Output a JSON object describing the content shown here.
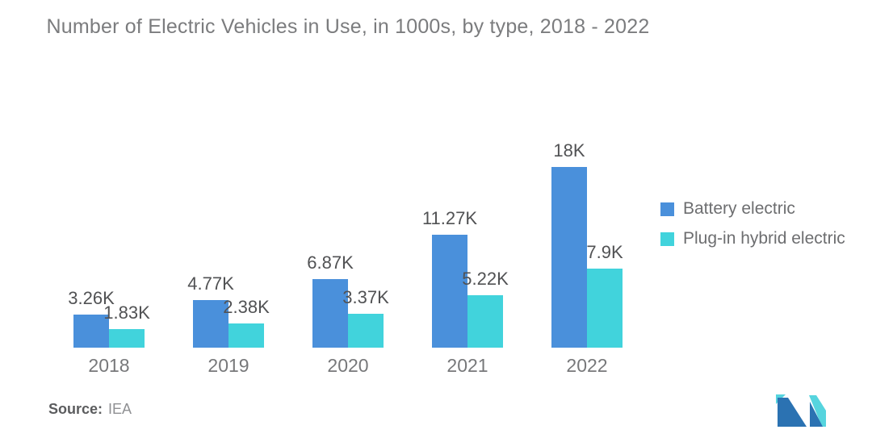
{
  "chart_data": {
    "type": "bar",
    "title": "Number of Electric Vehicles in Use, in 1000s, by type, 2018 - 2022",
    "categories": [
      "2018",
      "2019",
      "2020",
      "2021",
      "2022"
    ],
    "series": [
      {
        "name": "Battery electric",
        "color": "#4a90db",
        "values": [
          3.26,
          4.77,
          6.87,
          11.27,
          18
        ],
        "labels": [
          "3.26K",
          "4.77K",
          "6.87K",
          "11.27K",
          "18K"
        ]
      },
      {
        "name": "Plug-in hybrid electric",
        "color": "#41d3dc",
        "values": [
          1.83,
          2.38,
          3.37,
          5.22,
          7.9
        ],
        "labels": [
          "1.83K",
          "2.38K",
          "3.37K",
          "5.22K",
          "7.9K"
        ]
      }
    ],
    "unit": "thousands of vehicles",
    "xlabel": "",
    "ylabel": "",
    "ylim": [
      0,
      18
    ],
    "grid": false,
    "axes_visible": false,
    "legend_position": "right"
  },
  "source": {
    "label": "Source:",
    "value": "IEA"
  },
  "logo": {
    "name": "mordor-intelligence-logo",
    "colors": {
      "blue": "#2b72b2",
      "teal": "#56d4de"
    }
  }
}
